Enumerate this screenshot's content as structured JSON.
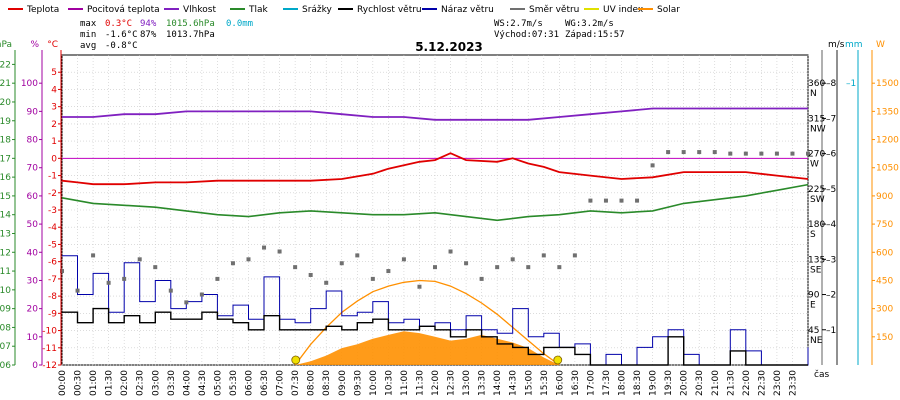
{
  "chart_data": {
    "type": "line",
    "title": "5.12.2023",
    "legend_placement": "top",
    "legend": [
      {
        "name": "Teplota",
        "color": "#e00000"
      },
      {
        "name": "Pocitová teplota",
        "color": "#a000a0"
      },
      {
        "name": "Vlhkost",
        "color": "#8020c0"
      },
      {
        "name": "Tlak",
        "color": "#2a8a2a"
      },
      {
        "name": "Srážky",
        "color": "#00a8c8"
      },
      {
        "name": "Rychlost větru",
        "color": "#000000"
      },
      {
        "name": "Náraz větru",
        "color": "#0000aa"
      },
      {
        "name": "Směr větru",
        "color": "#707070"
      },
      {
        "name": "UV index",
        "color": "#e0e000"
      },
      {
        "name": "Solar",
        "color": "#ff9000"
      }
    ],
    "stats": {
      "max": {
        "label": "max",
        "temp": "0.3°C",
        "hum": "94%",
        "press": "1015.6hPa",
        "rain": "0.0mm"
      },
      "min": {
        "label": "min",
        "temp": "-1.6°C",
        "hum": "87%",
        "press": "1013.7hPa"
      },
      "avg": {
        "label": "avg",
        "temp": "-0.8°C"
      }
    },
    "info": {
      "ws": "WS:2.7m/s",
      "wg": "WG:3.2m/s",
      "sunrise": "Východ:07:31",
      "sunset": "Západ:15:57"
    },
    "axes": {
      "hpa": {
        "unit": "hPa",
        "ticks": [
          1006,
          1007,
          1008,
          1009,
          1010,
          1011,
          1012,
          1013,
          1014,
          1015,
          1016,
          1017,
          1018,
          1019,
          1020,
          1021,
          1022
        ],
        "range": [
          1006,
          1022.5
        ]
      },
      "pct": {
        "unit": "%",
        "ticks": [
          0,
          10,
          20,
          30,
          40,
          50,
          60,
          70,
          80,
          90,
          100
        ],
        "range": [
          0,
          110
        ]
      },
      "temp": {
        "unit": "°C",
        "ticks": [
          -12,
          -11,
          -10,
          -9,
          -8,
          -7,
          -6,
          -5,
          -4,
          -3,
          -2,
          -1,
          0,
          1,
          2,
          3,
          4,
          5
        ],
        "range": [
          -12,
          6
        ]
      },
      "dir": {
        "ticks": [
          "45",
          "90",
          "135",
          "180",
          "225",
          "270",
          "315",
          "360"
        ],
        "values": [
          45,
          90,
          135,
          180,
          225,
          270,
          315,
          360
        ],
        "labels": [
          "NE",
          "E",
          "SE",
          "S",
          "SW",
          "W",
          "NW",
          "N"
        ],
        "range": [
          0,
          396
        ]
      },
      "ms": {
        "unit": "m/s",
        "ticks": [
          1,
          2,
          3,
          4,
          5,
          6,
          7,
          8
        ],
        "range": [
          0,
          8.8
        ]
      },
      "mm": {
        "unit": "mm",
        "ticks": [
          1
        ],
        "range": [
          0,
          1.1
        ]
      },
      "w": {
        "unit": "W",
        "ticks": [
          150,
          300,
          450,
          600,
          750,
          900,
          1050,
          1200,
          1350,
          1500
        ],
        "range": [
          0,
          1650
        ]
      },
      "x": {
        "label": "čas",
        "ticks": [
          "00:00",
          "00:30",
          "01:00",
          "01:30",
          "02:00",
          "02:30",
          "03:00",
          "03:30",
          "04:00",
          "04:30",
          "05:00",
          "05:30",
          "06:00",
          "06:30",
          "07:00",
          "07:30",
          "08:00",
          "08:30",
          "09:00",
          "09:30",
          "10:00",
          "10:30",
          "11:00",
          "11:30",
          "12:00",
          "12:30",
          "13:00",
          "13:30",
          "14:00",
          "14:30",
          "15:00",
          "15:30",
          "16:00",
          "16:30",
          "17:00",
          "17:30",
          "18:00",
          "18:30",
          "19:00",
          "19:30",
          "20:00",
          "20:30",
          "21:00",
          "21:30",
          "22:00",
          "22:30",
          "23:00",
          "23:30"
        ]
      }
    },
    "series": [
      {
        "name": "Teplota",
        "axis": "temp",
        "x": [
          0,
          0.5,
          1,
          2,
          3,
          4,
          5,
          6,
          7,
          8,
          9,
          10,
          10.5,
          11,
          11.5,
          12,
          12.5,
          13,
          14,
          14.5,
          15,
          15.5,
          16,
          17,
          18,
          19,
          20,
          21,
          22,
          23,
          24
        ],
        "values": [
          -1.3,
          -1.4,
          -1.5,
          -1.5,
          -1.4,
          -1.4,
          -1.3,
          -1.3,
          -1.3,
          -1.3,
          -1.2,
          -0.9,
          -0.6,
          -0.4,
          -0.2,
          -0.1,
          0.3,
          -0.1,
          -0.2,
          0,
          -0.3,
          -0.5,
          -0.8,
          -1.0,
          -1.2,
          -1.1,
          -0.8,
          -0.8,
          -0.8,
          -1.0,
          -1.2
        ]
      },
      {
        "name": "Vlhkost",
        "axis": "pct",
        "x": [
          0,
          1,
          2,
          3,
          4,
          5,
          6,
          7,
          8,
          9,
          10,
          11,
          12,
          13,
          14,
          15,
          16,
          17,
          18,
          19,
          20,
          21,
          22,
          23,
          24
        ],
        "values": [
          88,
          88,
          89,
          89,
          90,
          90,
          90,
          90,
          90,
          89,
          88,
          88,
          87,
          87,
          87,
          87,
          88,
          89,
          90,
          91,
          91,
          91,
          91,
          91,
          91
        ]
      },
      {
        "name": "Tlak",
        "axis": "hpa",
        "x": [
          0,
          1,
          2,
          3,
          4,
          5,
          6,
          7,
          8,
          9,
          10,
          11,
          12,
          13,
          14,
          15,
          16,
          17,
          18,
          19,
          20,
          21,
          22,
          23,
          24
        ],
        "values": [
          1014.9,
          1014.6,
          1014.5,
          1014.4,
          1014.2,
          1014.0,
          1013.9,
          1014.1,
          1014.2,
          1014.1,
          1014.0,
          1014.0,
          1014.1,
          1013.9,
          1013.7,
          1013.9,
          1014.0,
          1014.2,
          1014.1,
          1014.2,
          1014.6,
          1014.8,
          1015.0,
          1015.3,
          1015.6
        ]
      },
      {
        "name": "Rychlost větru",
        "axis": "ms",
        "x": [
          0,
          0.5,
          1,
          1.5,
          2,
          2.5,
          3,
          3.5,
          4,
          4.5,
          5,
          5.5,
          6,
          6.5,
          7,
          7.5,
          8,
          8.5,
          9,
          9.5,
          10,
          10.5,
          11,
          11.5,
          12,
          12.5,
          13,
          13.5,
          14,
          14.5,
          15,
          15.5,
          16,
          16.5,
          17,
          17.5,
          18,
          18.5,
          19,
          19.5,
          20,
          20.5,
          21,
          21.5,
          22,
          22.5,
          23,
          23.5,
          24
        ],
        "values": [
          1.5,
          1.2,
          1.6,
          1.2,
          1.4,
          1.2,
          1.5,
          1.3,
          1.3,
          1.5,
          1.3,
          1.2,
          1.0,
          1.4,
          1.0,
          1.0,
          1.0,
          1.1,
          1.0,
          1.2,
          1.3,
          1.0,
          1.0,
          1.1,
          1.0,
          0.8,
          1.0,
          0.8,
          0.6,
          0.5,
          0.3,
          0.5,
          0.5,
          0.3,
          0,
          0,
          0,
          0,
          0,
          0.8,
          0,
          0,
          0,
          0.4,
          0,
          0,
          0,
          0,
          0
        ]
      },
      {
        "name": "Náraz větru",
        "axis": "ms",
        "x": [
          0,
          0.5,
          1,
          1.5,
          2,
          2.5,
          3,
          3.5,
          4,
          4.5,
          5,
          5.5,
          6,
          6.5,
          7,
          7.5,
          8,
          8.5,
          9,
          9.5,
          10,
          10.5,
          11,
          11.5,
          12,
          12.5,
          13,
          13.5,
          14,
          14.5,
          15,
          15.5,
          16,
          16.5,
          17,
          17.5,
          18,
          18.5,
          19,
          19.5,
          20,
          20.5,
          21,
          21.5,
          22,
          22.5,
          23,
          23.5,
          24
        ],
        "values": [
          3.1,
          2.0,
          2.6,
          1.5,
          2.9,
          1.8,
          2.4,
          1.6,
          1.8,
          2.0,
          1.4,
          1.7,
          1.3,
          2.5,
          1.3,
          1.2,
          1.6,
          2.1,
          1.4,
          1.5,
          1.8,
          1.2,
          1.3,
          1.1,
          1.2,
          1.0,
          1.4,
          1.0,
          0.9,
          1.6,
          0.8,
          0.9,
          0.5,
          0.6,
          0,
          0.3,
          0,
          0.5,
          0.8,
          1.0,
          0.3,
          0,
          0,
          1.0,
          0.4,
          0,
          0,
          0,
          0.5
        ]
      },
      {
        "name": "Směr větru",
        "axis": "dir",
        "x": [
          0,
          0.5,
          1,
          1.5,
          2,
          2.5,
          3,
          3.5,
          4,
          4.5,
          5,
          5.5,
          6,
          6.5,
          7,
          7.5,
          8,
          8.5,
          9,
          9.5,
          10,
          10.5,
          11,
          11.5,
          12,
          12.5,
          13,
          13.5,
          14,
          14.5,
          15,
          15.5,
          16,
          16.5,
          17,
          17.5,
          18,
          18.5,
          19,
          19.5,
          20,
          20.5,
          21,
          21.5,
          22,
          22.5,
          23,
          23.5,
          24
        ],
        "values": [
          120,
          95,
          140,
          105,
          110,
          135,
          125,
          95,
          80,
          90,
          110,
          130,
          135,
          150,
          145,
          125,
          115,
          105,
          130,
          140,
          110,
          120,
          135,
          100,
          125,
          145,
          130,
          110,
          125,
          135,
          125,
          140,
          125,
          140,
          210,
          210,
          210,
          210,
          255,
          272,
          272,
          272,
          272,
          270,
          270,
          270,
          270,
          270,
          270
        ]
      },
      {
        "name": "Solar",
        "axis": "w",
        "x": [
          7.5,
          8,
          8.5,
          9,
          9.5,
          10,
          10.5,
          11,
          11.5,
          12,
          12.5,
          13,
          13.5,
          14,
          14.5,
          15,
          15.5,
          16
        ],
        "values": [
          0,
          20,
          50,
          90,
          110,
          140,
          160,
          180,
          170,
          150,
          130,
          140,
          160,
          140,
          120,
          90,
          40,
          0
        ]
      },
      {
        "name": "Solar max",
        "axis": "w",
        "x": [
          7.5,
          8,
          8.5,
          9,
          9.5,
          10,
          10.5,
          11,
          11.5,
          12,
          12.5,
          13,
          13.5,
          14,
          14.5,
          15,
          15.5,
          16
        ],
        "values": [
          0,
          110,
          200,
          280,
          340,
          390,
          420,
          440,
          450,
          445,
          420,
          380,
          330,
          270,
          200,
          130,
          60,
          0
        ]
      }
    ]
  }
}
